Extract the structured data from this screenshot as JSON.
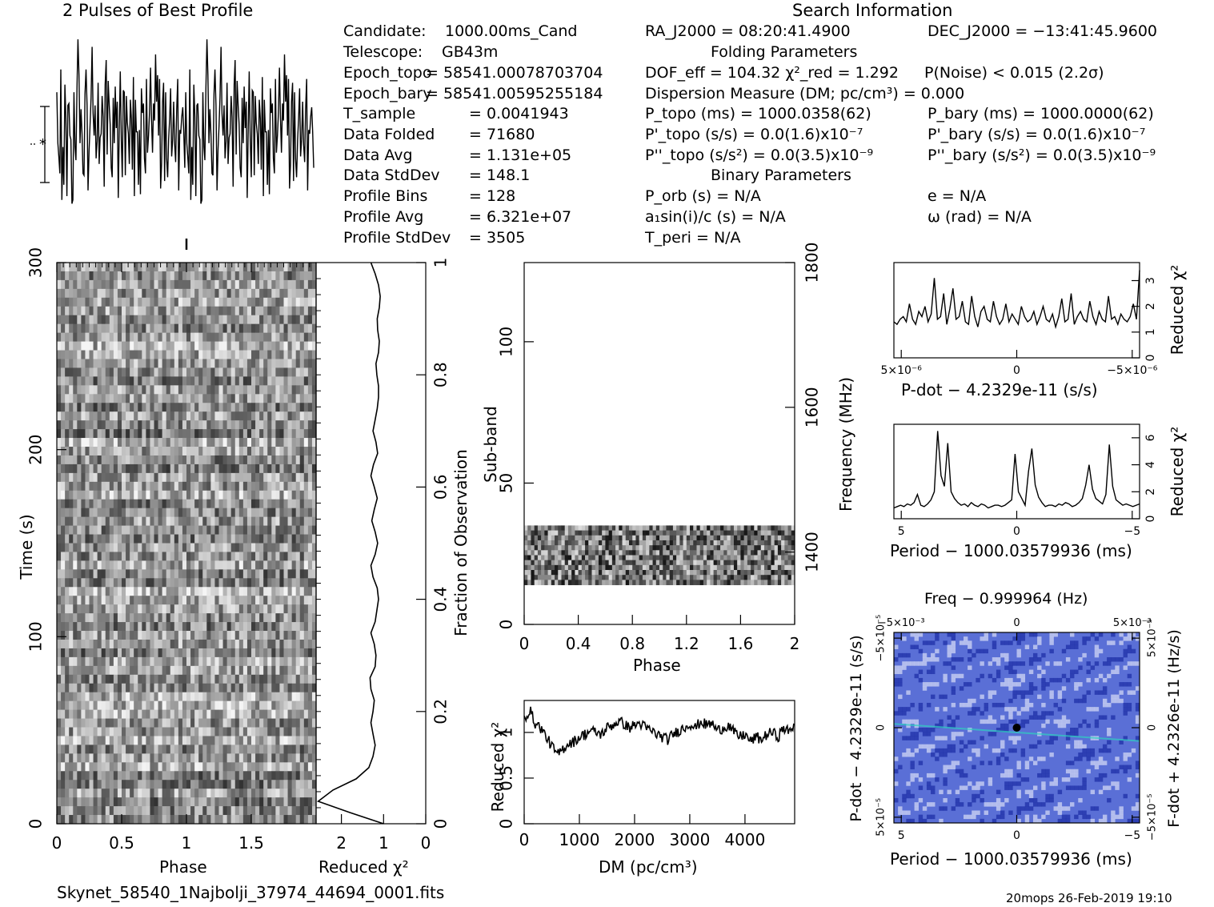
{
  "chart_data": {
    "type": "pulsar-fold-diagnostic",
    "header": {
      "left_title": "2 Pulses of Best Profile",
      "right_title": "Search Information",
      "folding_title": "Folding Parameters",
      "binary_title": "Binary Parameters"
    },
    "info_left": [
      {
        "label": "Candidate:",
        "value": "1000.00ms_Cand"
      },
      {
        "label": "Telescope:",
        "value": "GB43m"
      },
      {
        "label": "Epoch_topo",
        "value": "= 58541.00078703704"
      },
      {
        "label": "Epoch_bary",
        "value": "= 58541.00595255184"
      },
      {
        "label": "T_sample",
        "value": "= 0.0041943"
      },
      {
        "label": "Data Folded",
        "value": "= 71680"
      },
      {
        "label": "Data Avg",
        "value": "= 1.131e+05"
      },
      {
        "label": "Data StdDev",
        "value": "= 148.1"
      },
      {
        "label": "Profile Bins",
        "value": "= 128"
      },
      {
        "label": "Profile Avg",
        "value": "= 6.321e+07"
      },
      {
        "label": "Profile StdDev",
        "value": "= 3505"
      }
    ],
    "info_mid": [
      "RA_J2000 = 08:20:41.4900",
      "DOF_eff = 104.32  χ²_red = 1.292",
      "Dispersion Measure (DM; pc/cm³) = 0.000",
      "P_topo (ms) = 1000.0358(62)",
      "P'_topo (s/s) = 0.0(1.6)x10⁻⁷",
      "P''_topo (s/s²) = 0.0(3.5)x10⁻⁹",
      "P_orb (s) = N/A",
      "a₁sin(i)/c (s) = N/A",
      "T_peri = N/A"
    ],
    "info_right": [
      "DEC_J2000 = −13:41:45.9600",
      "P(Noise) < 0.015   (2.2σ)",
      "P_bary (ms) = 1000.0000(62)",
      "P'_bary (s/s) = 0.0(1.6)x10⁻⁷",
      "P''_bary (s/s²) = 0.0(3.5)x10⁻⁹",
      "e = N/A",
      "ω (rad) = N/A"
    ],
    "profile": {
      "title": "2 Pulses of Best Profile",
      "bins": 128,
      "pulses": 2,
      "values": [
        0.69,
        0.42,
        0.35,
        0.26,
        0.81,
        0.12,
        0.4,
        0.2,
        0.73,
        0.56,
        0.14,
        0.62,
        0.63,
        0.46,
        0.44,
        0.1,
        0.12,
        0.69,
        0.4,
        0.33,
        0.71,
        0.97,
        0.78,
        0.42,
        0.6,
        0.47,
        0.26,
        0.25,
        0.68,
        0.81,
        0.62,
        0.17,
        0.38,
        0.51,
        0.66,
        0.93,
        0.58,
        0.46,
        0.62,
        0.34,
        0.43,
        0.74,
        0.31,
        0.45,
        0.47,
        0.67,
        0.56,
        0.19,
        0.73,
        0.86,
        0.36,
        0.75,
        0.62,
        0.52,
        0.29,
        0.24,
        0.66,
        0.42,
        0.72,
        0.5,
        0.64,
        0.13,
        0.49,
        0.8,
        0.44,
        0.24,
        0.7,
        0.69,
        0.25,
        0.67,
        0.53,
        0.47,
        0.31,
        0.65,
        0.55,
        0.28,
        0.77,
        0.14,
        0.65,
        0.48,
        0.48,
        0.2,
        0.49,
        0.15,
        0.71,
        0.58,
        0.63,
        0.34,
        0.26,
        0.76,
        0.37,
        0.46,
        0.58,
        0.82,
        0.55,
        0.37,
        0.63,
        0.54,
        0.89,
        0.64,
        0.78,
        0.46,
        0.76,
        0.18,
        0.31,
        0.64,
        0.74,
        0.22,
        0.69,
        0.34,
        0.24,
        0.44,
        0.55,
        0.71,
        0.35,
        0.44,
        0.64,
        0.41,
        0.32,
        0.6,
        0.76,
        0.17,
        0.49,
        0.47,
        0.56,
        0.61,
        0.48,
        0.29
      ]
    },
    "time_phase": {
      "type": "heatmap",
      "xlabel": "Phase",
      "ylabel": "Time (s)",
      "xlim": [
        0,
        2
      ],
      "ylim": [
        0,
        300
      ],
      "x_ticks": [
        "0",
        "0.5",
        "1",
        "1.5"
      ],
      "y_ticks": [
        "0",
        "100",
        "200",
        "300"
      ]
    },
    "redchi_vs_time": {
      "type": "line",
      "xlabel": "Reduced χ²",
      "ylabel": "Fraction of Observation",
      "xlim": [
        0,
        2.6
      ],
      "ylim": [
        0,
        1
      ],
      "x_ticks": [
        "2",
        "1",
        "0"
      ],
      "y_ticks": [
        "0",
        "0.2",
        "0.4",
        "0.6",
        "0.8",
        "1"
      ],
      "frac": [
        0,
        0.02,
        0.04,
        0.06,
        0.08,
        0.1,
        0.12,
        0.14,
        0.16,
        0.18,
        0.2,
        0.22,
        0.24,
        0.26,
        0.28,
        0.3,
        0.32,
        0.34,
        0.36,
        0.38,
        0.4,
        0.42,
        0.44,
        0.46,
        0.48,
        0.5,
        0.52,
        0.54,
        0.56,
        0.58,
        0.6,
        0.62,
        0.64,
        0.66,
        0.68,
        0.7,
        0.72,
        0.74,
        0.76,
        0.78,
        0.8,
        0.82,
        0.84,
        0.86,
        0.88,
        0.9,
        0.92,
        0.94,
        0.96,
        0.98,
        1.0
      ],
      "redchi": [
        1.0,
        1.8,
        2.55,
        2.2,
        1.65,
        1.35,
        1.25,
        1.2,
        1.25,
        1.3,
        1.25,
        1.22,
        1.3,
        1.32,
        1.2,
        1.18,
        1.22,
        1.3,
        1.2,
        1.16,
        1.12,
        1.15,
        1.25,
        1.3,
        1.2,
        1.14,
        1.2,
        1.28,
        1.22,
        1.15,
        1.22,
        1.3,
        1.24,
        1.14,
        1.18,
        1.25,
        1.2,
        1.15,
        1.12,
        1.12,
        1.16,
        1.18,
        1.12,
        1.1,
        1.14,
        1.15,
        1.1,
        1.08,
        1.12,
        1.2,
        1.3
      ]
    },
    "subband_phase": {
      "type": "heatmap",
      "xlabel": "Phase",
      "ylabel": "Sub-band",
      "y2label": "Frequency (MHz)",
      "xlim": [
        0,
        2
      ],
      "ylim": [
        0,
        128
      ],
      "x_ticks": [
        "0",
        "0.4",
        "0.8",
        "1.2",
        "1.6",
        "2"
      ],
      "y_ticks": [
        "0",
        "50",
        "100"
      ],
      "y2_ticks": [
        "1400",
        "1600",
        "1800"
      ],
      "data_band": [
        14,
        35
      ]
    },
    "dm_curve": {
      "type": "line",
      "xlabel": "DM (pc/cm³)",
      "ylabel": "Reduced χ²",
      "xlim": [
        0,
        4900
      ],
      "ylim": [
        0,
        1.35
      ],
      "x_ticks": [
        "0",
        "1000",
        "2000",
        "3000",
        "4000"
      ],
      "y_ticks": [
        "0",
        "0.5",
        "1"
      ],
      "x": [
        0,
        100,
        200,
        300,
        400,
        500,
        600,
        700,
        800,
        900,
        1000,
        1100,
        1200,
        1300,
        1400,
        1500,
        1600,
        1700,
        1800,
        1900,
        2000,
        2100,
        2200,
        2300,
        2400,
        2500,
        2600,
        2700,
        2800,
        2900,
        3000,
        3100,
        3200,
        3300,
        3400,
        3500,
        3600,
        3700,
        3800,
        3900,
        4000,
        4100,
        4200,
        4300,
        4400,
        4500,
        4600,
        4700,
        4800,
        4900
      ],
      "y": [
        1.15,
        1.25,
        1.1,
        1.05,
        0.95,
        0.85,
        0.75,
        0.82,
        0.88,
        0.9,
        0.95,
        0.98,
        1.02,
        1.0,
        0.98,
        1.05,
        1.08,
        1.12,
        1.1,
        1.05,
        1.08,
        1.1,
        1.05,
        1.02,
        0.98,
        0.95,
        0.92,
        0.98,
        1.02,
        1.05,
        1.1,
        1.05,
        1.12,
        1.08,
        1.1,
        1.02,
        1.05,
        1.08,
        1.0,
        0.95,
        0.98,
        0.9,
        0.95,
        0.92,
        0.98,
        1.0,
        0.95,
        1.05,
        1.0,
        1.1
      ]
    },
    "pdot_curve": {
      "type": "line",
      "xlabel": "P-dot − 4.2329e-11 (s/s)",
      "ylabel": "Reduced χ²",
      "x_ticks": [
        "5×10⁻⁶",
        "0",
        "−5×10⁻⁶"
      ],
      "y_ticks": [
        "0",
        "1",
        "2",
        "3"
      ],
      "ylim": [
        0,
        3.7
      ],
      "values": [
        1.4,
        1.3,
        1.5,
        1.6,
        1.4,
        2.1,
        1.5,
        1.3,
        1.8,
        1.6,
        2.0,
        1.4,
        1.7,
        3.1,
        1.5,
        1.6,
        2.5,
        1.3,
        1.9,
        2.7,
        1.5,
        1.6,
        2.2,
        1.4,
        1.3,
        2.4,
        1.6,
        1.2,
        1.8,
        2.0,
        1.5,
        1.4,
        2.2,
        1.6,
        1.3,
        1.5,
        2.1,
        1.4,
        1.7,
        1.5,
        1.3,
        2.0,
        1.6,
        1.4,
        1.5,
        1.8,
        1.3,
        1.6,
        2.0,
        1.5,
        1.4,
        1.7,
        1.2,
        1.6,
        2.3,
        1.4,
        1.5,
        2.5,
        1.3,
        1.6,
        1.8,
        1.5,
        1.4,
        2.2,
        1.6,
        1.3,
        1.8,
        1.5,
        1.4,
        2.4,
        1.5,
        1.6,
        1.3,
        1.7,
        1.5,
        1.4,
        1.6,
        2.1,
        1.5,
        3.4
      ]
    },
    "period_curve": {
      "type": "line",
      "xlabel": "Period − 1000.03579936 (ms)",
      "ylabel": "Reduced χ²",
      "x_ticks": [
        "5",
        "0",
        "−5"
      ],
      "y_ticks": [
        "0",
        "2",
        "4",
        "6"
      ],
      "ylim": [
        0,
        7
      ],
      "values": [
        0.8,
        0.9,
        1.0,
        0.9,
        1.1,
        1.0,
        1.2,
        1.8,
        1.0,
        0.9,
        1.1,
        1.4,
        2.0,
        6.5,
        3.2,
        2.4,
        5.6,
        2.0,
        1.5,
        1.2,
        1.0,
        1.1,
        0.9,
        1.2,
        1.0,
        0.9,
        1.1,
        1.0,
        0.8,
        0.9,
        1.0,
        1.0,
        0.9,
        1.0,
        1.2,
        1.4,
        4.8,
        2.0,
        1.5,
        1.0,
        3.5,
        5.2,
        2.5,
        1.6,
        1.2,
        0.9,
        1.0,
        1.0,
        0.9,
        1.1,
        1.0,
        1.2,
        1.1,
        0.9,
        1.0,
        1.2,
        1.5,
        2.5,
        4.0,
        2.2,
        1.5,
        1.3,
        1.1,
        1.8,
        5.5,
        2.4,
        1.4,
        1.2,
        1.0,
        1.1,
        1.0,
        0.9,
        1.0,
        1.1
      ]
    },
    "ppdot_plane": {
      "type": "heatmap",
      "title": "Freq − 0.999964 (Hz)",
      "xlabel": "Period − 1000.03579936 (ms)",
      "ylabel": "P-dot − 4.2329e-11 (s/s)",
      "y2label": "F-dot + 4.2326e-11 (Hz/s)",
      "x_ticks": [
        "5",
        "0",
        "−5"
      ],
      "x2_ticks": [
        "−5×10⁻³",
        "0",
        "5×10⁻³"
      ],
      "y_ticks": [
        "5×10⁻⁵",
        "0",
        "−5×10⁻⁵"
      ],
      "y2_ticks": [
        "−5×10⁻⁵",
        "0",
        "5×10⁻⁵"
      ],
      "colors": {
        "base": "#5a6fd6",
        "light": "#c8cff2",
        "dark": "#2233aa",
        "peak": "#000000",
        "accent": "#2fd0c0"
      }
    },
    "footer": {
      "filename": "Skynet_58540_1Najbolji_37974_44694_0001.fits",
      "stamp": "20mops 26-Feb-2019 19:10"
    }
  }
}
